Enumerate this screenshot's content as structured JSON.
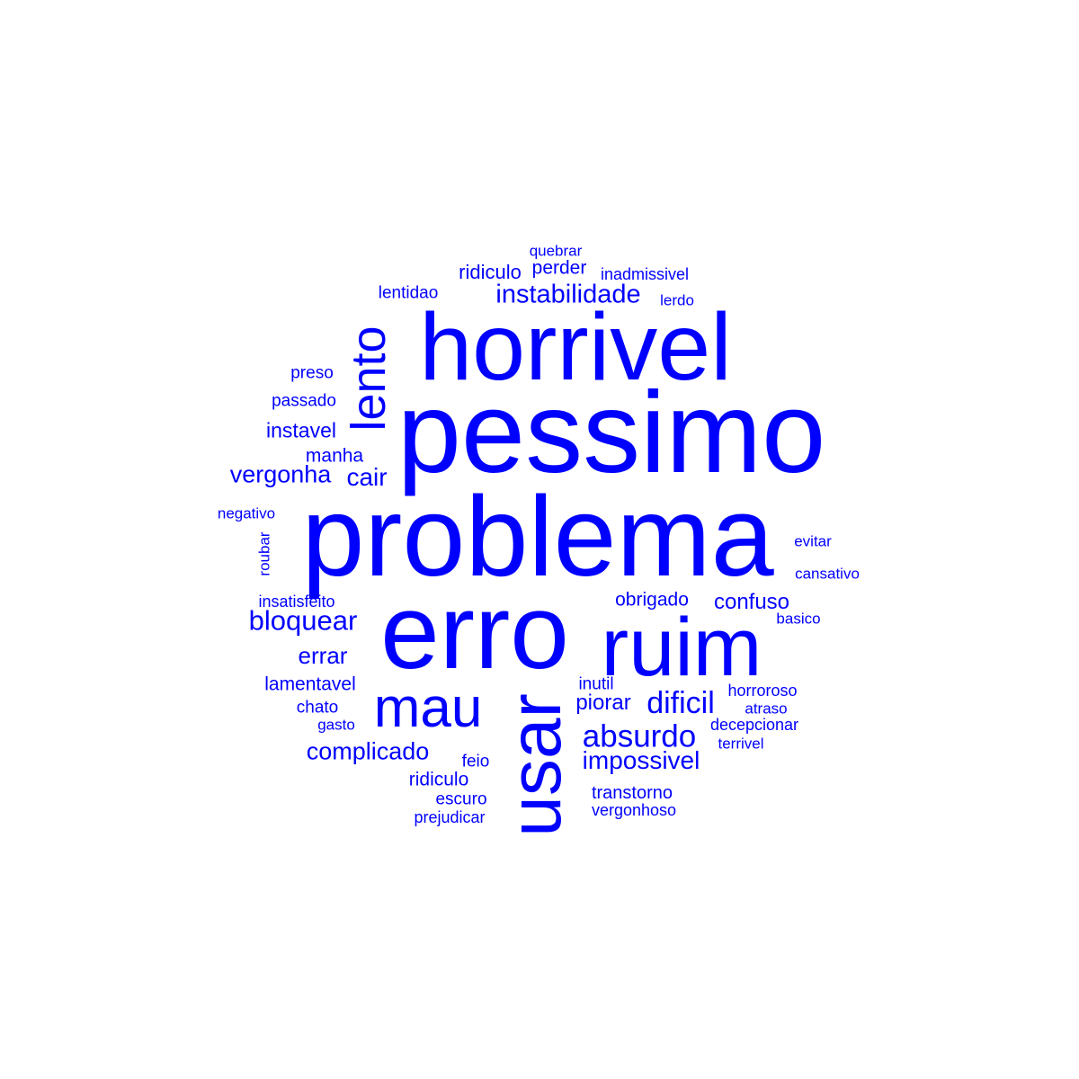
{
  "word_color": "#0000ff",
  "background": "#ffffff",
  "words": [
    {
      "text": "pessimo",
      "weight": 100
    },
    {
      "text": "problema",
      "weight": 100
    },
    {
      "text": "horrivel",
      "weight": 80
    },
    {
      "text": "erro",
      "weight": 85
    },
    {
      "text": "ruim",
      "weight": 70
    },
    {
      "text": "usar",
      "weight": 68
    },
    {
      "text": "mau",
      "weight": 52
    },
    {
      "text": "lento",
      "weight": 44
    },
    {
      "text": "instabilidade",
      "weight": 23
    },
    {
      "text": "absurdo",
      "weight": 27
    },
    {
      "text": "dificil",
      "weight": 27
    },
    {
      "text": "impossivel",
      "weight": 22
    },
    {
      "text": "vergonha",
      "weight": 21
    },
    {
      "text": "bloquear",
      "weight": 24
    },
    {
      "text": "cair",
      "weight": 22
    },
    {
      "text": "complicado",
      "weight": 21
    },
    {
      "text": "errar",
      "weight": 20
    },
    {
      "text": "piorar",
      "weight": 19
    },
    {
      "text": "confuso",
      "weight": 19
    },
    {
      "text": "instavel",
      "weight": 19
    },
    {
      "text": "ridiculo",
      "weight": 18
    },
    {
      "text": "perder",
      "weight": 17
    },
    {
      "text": "obrigado",
      "weight": 17
    },
    {
      "text": "manha",
      "weight": 17
    },
    {
      "text": "lamentavel",
      "weight": 17
    },
    {
      "text": "ridiculo",
      "weight": 17
    },
    {
      "text": "transtorno",
      "weight": 16
    },
    {
      "text": "lentidao",
      "weight": 15
    },
    {
      "text": "passado",
      "weight": 15
    },
    {
      "text": "preso",
      "weight": 15
    },
    {
      "text": "chato",
      "weight": 15
    },
    {
      "text": "feio",
      "weight": 15
    },
    {
      "text": "inutil",
      "weight": 15
    },
    {
      "text": "escuro",
      "weight": 15
    },
    {
      "text": "prejudicar",
      "weight": 14
    },
    {
      "text": "horroroso",
      "weight": 14
    },
    {
      "text": "decepcionar",
      "weight": 14
    },
    {
      "text": "vergonhoso",
      "weight": 14
    },
    {
      "text": "insatisfeito",
      "weight": 14
    },
    {
      "text": "inadmissivel",
      "weight": 14
    },
    {
      "text": "negativo",
      "weight": 13
    },
    {
      "text": "quebrar",
      "weight": 13
    },
    {
      "text": "lerdo",
      "weight": 13
    },
    {
      "text": "gasto",
      "weight": 13
    },
    {
      "text": "evitar",
      "weight": 13
    },
    {
      "text": "cansativo",
      "weight": 13
    },
    {
      "text": "basico",
      "weight": 13
    },
    {
      "text": "atraso",
      "weight": 13
    },
    {
      "text": "terrivel",
      "weight": 13
    },
    {
      "text": "roubar",
      "weight": 13
    }
  ]
}
